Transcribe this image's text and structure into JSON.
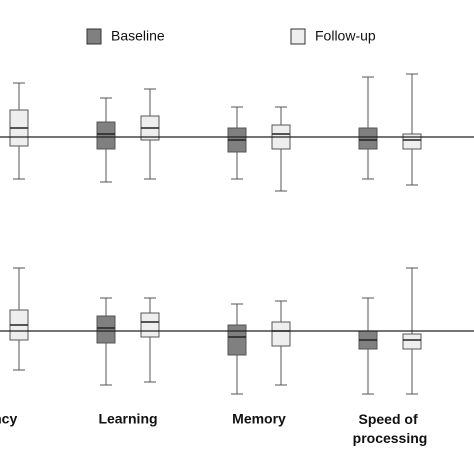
{
  "chart_data": [
    {
      "type": "box",
      "series": [
        {
          "name": "Baseline",
          "color": "#808080",
          "values": [
            null,
            {
              "min": -1.5,
              "q1": -0.4,
              "median": 0.1,
              "q3": 0.5,
              "max": 1.3
            },
            {
              "min": -1.4,
              "q1": -0.5,
              "median": -0.1,
              "q3": 0.3,
              "max": 1.0
            },
            {
              "min": -1.4,
              "q1": -0.4,
              "median": -0.1,
              "q3": 0.3,
              "max": 2.0
            }
          ]
        },
        {
          "name": "Follow-up",
          "color": "#eeeeee",
          "values": [
            {
              "min": -1.4,
              "q1": -0.3,
              "median": 0.3,
              "q3": 0.9,
              "max": 1.8
            },
            {
              "min": -1.4,
              "q1": -0.1,
              "median": 0.3,
              "q3": 0.7,
              "max": 1.6
            },
            {
              "min": -1.8,
              "q1": -0.4,
              "median": 0.1,
              "q3": 0.4,
              "max": 1.0
            },
            {
              "min": -1.6,
              "q1": -0.4,
              "median": -0.1,
              "q3": 0.1,
              "max": 2.1
            }
          ]
        }
      ],
      "refline": 0,
      "ylim": [
        -2,
        2.5
      ]
    },
    {
      "type": "box",
      "categories": [
        "uency",
        "Learning",
        "Memory",
        "Speed of processing"
      ],
      "series": [
        {
          "color": "#808080",
          "values": [
            null,
            {
              "min": -1.8,
              "q1": -0.4,
              "median": 0.1,
              "q3": 0.5,
              "max": 1.1
            },
            {
              "min": -2.1,
              "q1": -0.8,
              "median": -0.2,
              "q3": 0.2,
              "max": 0.9
            },
            {
              "min": -2.1,
              "q1": -0.6,
              "median": -0.3,
              "q3": 0.0,
              "max": 1.1
            }
          ]
        },
        {
          "color": "#eeeeee",
          "values": [
            {
              "min": -1.3,
              "q1": -0.3,
              "median": 0.2,
              "q3": 0.7,
              "max": 2.1
            },
            {
              "min": -1.7,
              "q1": -0.2,
              "median": 0.3,
              "q3": 0.6,
              "max": 1.1
            },
            {
              "min": -1.8,
              "q1": -0.5,
              "median": 0.0,
              "q3": 0.3,
              "max": 1.0
            },
            {
              "min": -2.1,
              "q1": -0.6,
              "median": -0.3,
              "q3": -0.1,
              "max": 2.1
            }
          ]
        }
      ],
      "refline": 0,
      "ylim": [
        -2.3,
        2.5
      ]
    }
  ]
}
